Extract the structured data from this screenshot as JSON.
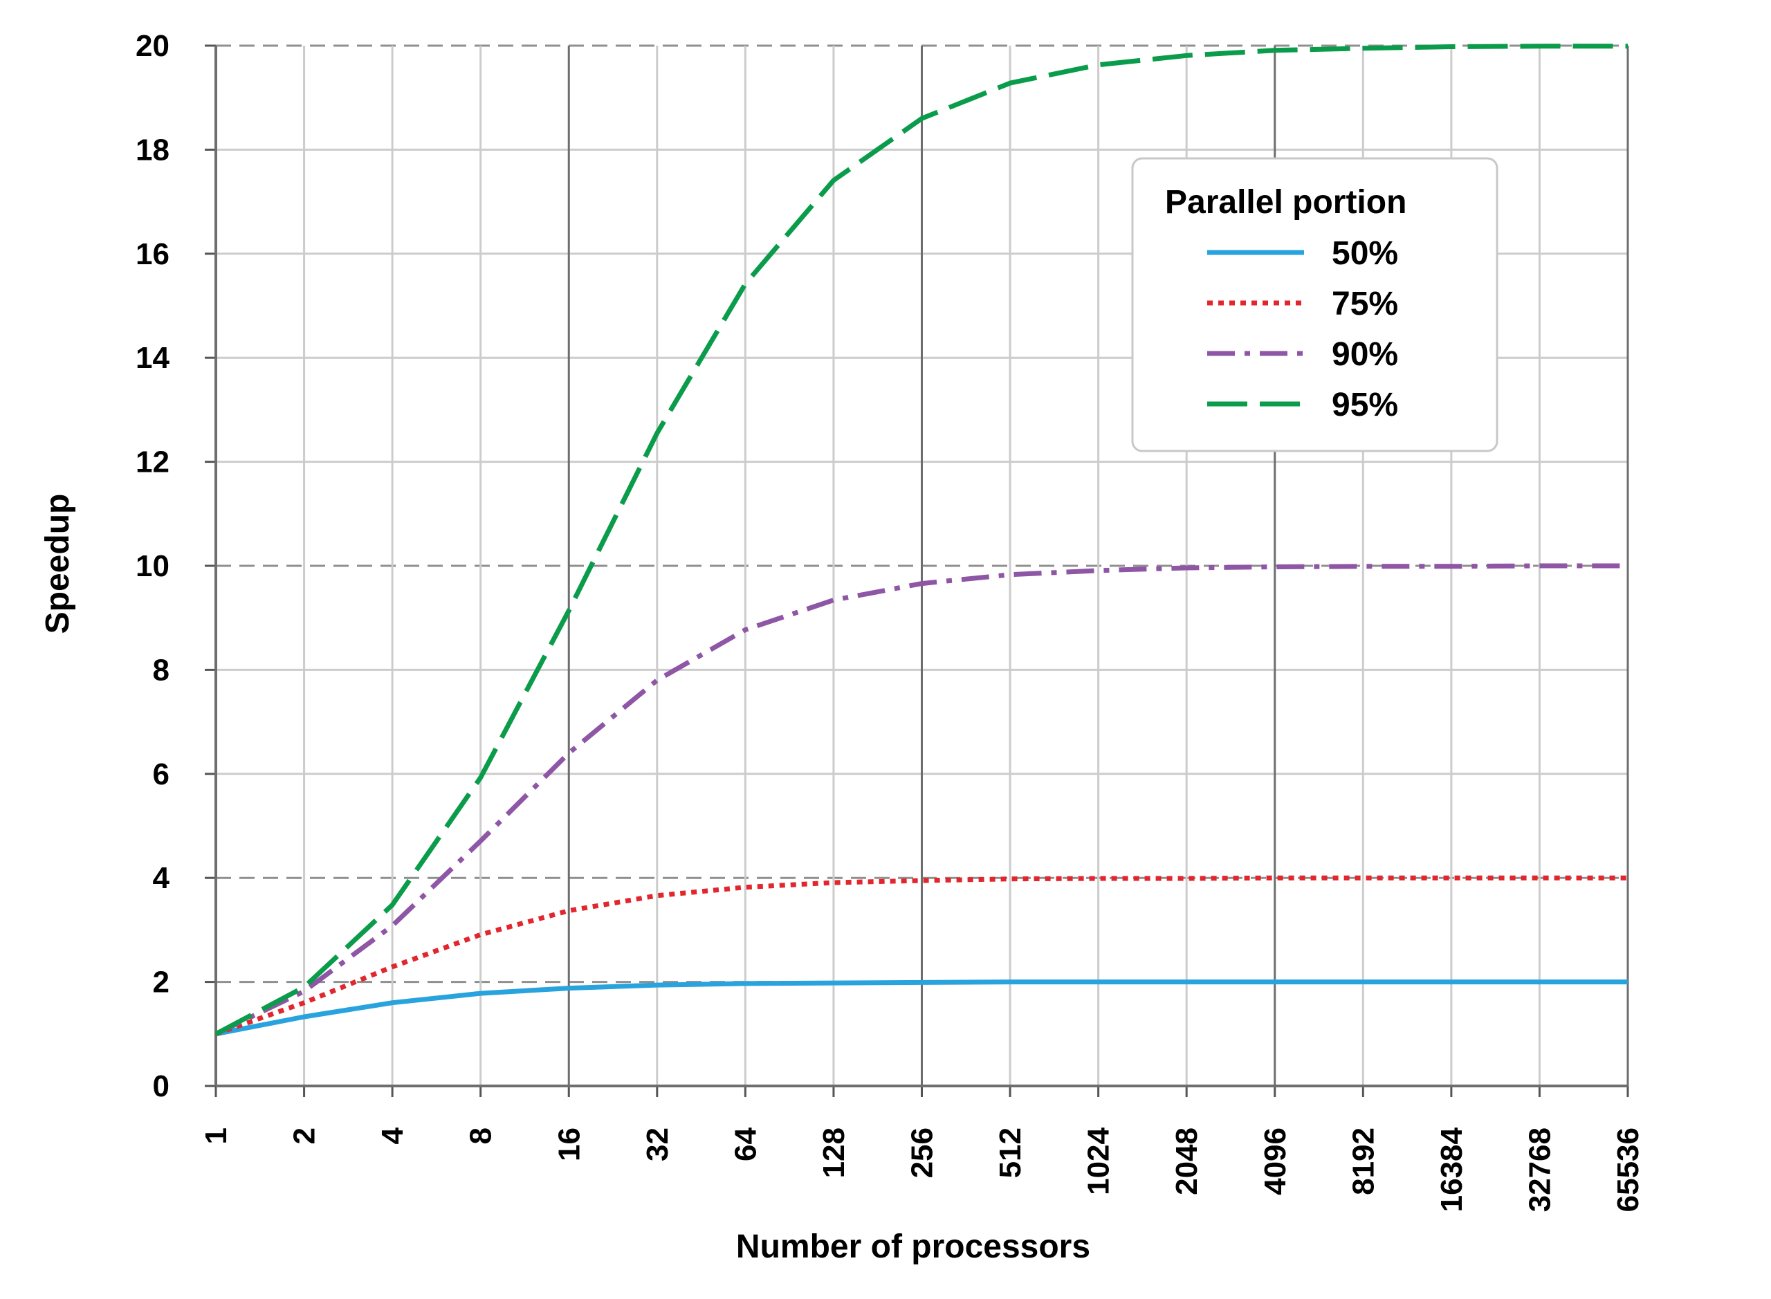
{
  "chart_data": {
    "type": "line",
    "title": "",
    "xlabel": "Number of processors",
    "ylabel": "Speedup",
    "x_scale": "log2",
    "x": [
      1,
      2,
      4,
      8,
      16,
      32,
      64,
      128,
      256,
      512,
      1024,
      2048,
      4096,
      8192,
      16384,
      32768,
      65536
    ],
    "x_tick_labels": [
      "1",
      "2",
      "4",
      "8",
      "16",
      "32",
      "64",
      "128",
      "256",
      "512",
      "1024",
      "2048",
      "4096",
      "8192",
      "16384",
      "32768",
      "65536"
    ],
    "ylim": [
      0,
      20
    ],
    "y_ticks": [
      0,
      2,
      4,
      6,
      8,
      10,
      12,
      14,
      16,
      18,
      20
    ],
    "y_tick_labels": [
      "0",
      "2",
      "4",
      "6",
      "8",
      "10",
      "12",
      "14",
      "16",
      "18",
      "20"
    ],
    "grid": true,
    "legend": {
      "title": "Parallel portion",
      "position": "top-right"
    },
    "series": [
      {
        "name": "50%",
        "color": "#29a3dd",
        "dash": "solid",
        "values": [
          1.0,
          1.33,
          1.6,
          1.78,
          1.88,
          1.94,
          1.97,
          1.98,
          1.99,
          2.0,
          2.0,
          2.0,
          2.0,
          2.0,
          2.0,
          2.0,
          2.0
        ]
      },
      {
        "name": "75%",
        "color": "#e1262d",
        "dash": "dotted",
        "values": [
          1.0,
          1.6,
          2.29,
          2.91,
          3.37,
          3.66,
          3.82,
          3.91,
          3.95,
          3.98,
          3.99,
          3.99,
          4.0,
          4.0,
          4.0,
          4.0,
          4.0
        ]
      },
      {
        "name": "90%",
        "color": "#8e56a5",
        "dash": "dashdot",
        "values": [
          1.0,
          1.82,
          3.08,
          4.71,
          6.4,
          7.8,
          8.77,
          9.34,
          9.66,
          9.83,
          9.91,
          9.96,
          9.98,
          9.99,
          9.99,
          10.0,
          10.0
        ]
      },
      {
        "name": "95%",
        "color": "#0a9c4a",
        "dash": "dashed",
        "values": [
          1.0,
          1.9,
          3.48,
          5.93,
          9.14,
          12.55,
          15.42,
          17.41,
          18.6,
          19.28,
          19.63,
          19.81,
          19.91,
          19.95,
          19.98,
          19.99,
          19.99
        ]
      }
    ]
  }
}
